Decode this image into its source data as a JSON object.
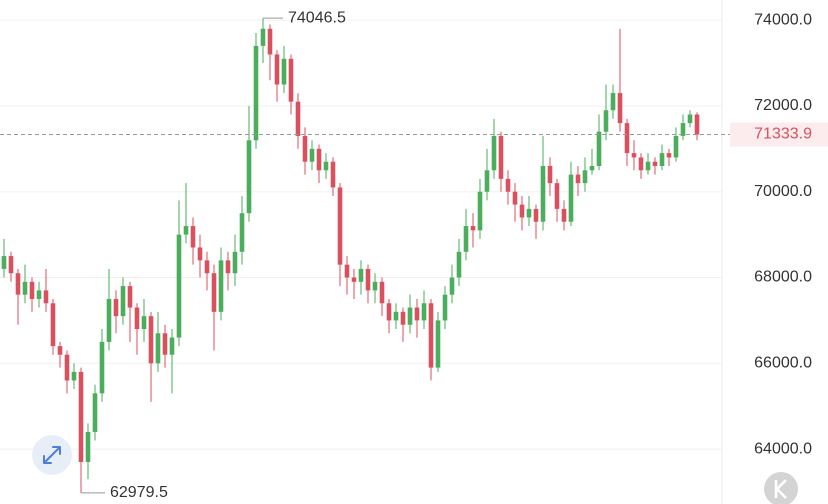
{
  "chart_data": {
    "type": "candlestick",
    "open": [
      68200,
      68500,
      68100,
      67600,
      67900,
      67500,
      67700,
      67400,
      66400,
      66200,
      65600,
      65800,
      63700,
      64400,
      65300,
      66500,
      67500,
      67100,
      67800,
      67300,
      66800,
      67100,
      66000,
      66700,
      66200,
      66600,
      69000,
      69200,
      68700,
      68400,
      68100,
      67200,
      68400,
      68100,
      68600,
      69500,
      71200,
      73400,
      73800,
      73200,
      72500,
      73100,
      72100,
      71300,
      70700,
      71000,
      70500,
      70700,
      70100,
      68300,
      68000,
      67900,
      68200,
      67700,
      67900,
      67400,
      67000,
      67200,
      66900,
      67300,
      67000,
      67400,
      65900,
      67000,
      67600,
      68000,
      68600,
      69200,
      69100,
      70000,
      70500,
      71300,
      70300,
      70000,
      69700,
      69400,
      69600,
      69300,
      70600,
      70200,
      69600,
      69300,
      70400,
      70200,
      70500,
      70600,
      71400,
      71900,
      72300,
      71600,
      70900,
      70800,
      70500,
      70700,
      70600,
      70900,
      70800,
      71300,
      71600,
      71800
    ],
    "high": [
      68900,
      68600,
      68200,
      68300,
      68000,
      67900,
      68200,
      67500,
      66500,
      66300,
      66000,
      65900,
      64600,
      65500,
      66800,
      68200,
      67700,
      68000,
      67900,
      67400,
      67500,
      67200,
      67200,
      66900,
      66800,
      69800,
      70200,
      69400,
      69000,
      68600,
      68300,
      68700,
      68600,
      69000,
      69900,
      72000,
      73700,
      74046.5,
      73900,
      73300,
      73400,
      73200,
      72300,
      71500,
      71200,
      71100,
      70900,
      70800,
      70200,
      68500,
      68200,
      68400,
      68300,
      68100,
      68000,
      67500,
      67400,
      67300,
      67600,
      67500,
      67700,
      67500,
      67200,
      67800,
      68300,
      68900,
      69600,
      69500,
      70300,
      71000,
      71700,
      71400,
      70500,
      70200,
      69900,
      69900,
      69700,
      71300,
      70800,
      70300,
      69800,
      70700,
      70600,
      70800,
      71000,
      71800,
      72500,
      72500,
      73800,
      71700,
      71200,
      70900,
      70900,
      70800,
      71100,
      71000,
      71500,
      71800,
      71900,
      71850
    ],
    "low": [
      68000,
      67900,
      66900,
      67400,
      67200,
      67300,
      67200,
      66200,
      65900,
      65300,
      65400,
      62979.5,
      63300,
      64200,
      65100,
      66300,
      66700,
      66900,
      66500,
      66200,
      66500,
      65100,
      65800,
      65900,
      65300,
      66400,
      68800,
      68300,
      68000,
      67700,
      66300,
      67000,
      67700,
      67800,
      68300,
      69300,
      71000,
      73000,
      72600,
      72100,
      72300,
      71800,
      71000,
      70400,
      70500,
      70200,
      70300,
      69900,
      67800,
      67600,
      67500,
      67600,
      67400,
      67400,
      67100,
      66700,
      66800,
      66500,
      66700,
      66600,
      66800,
      65600,
      65800,
      66800,
      67400,
      67800,
      68400,
      68700,
      68900,
      69800,
      70300,
      70000,
      69700,
      69300,
      69100,
      69200,
      68900,
      69100,
      69900,
      69300,
      69100,
      69200,
      69900,
      70000,
      70400,
      70500,
      71200,
      71700,
      71400,
      70600,
      70500,
      70300,
      70400,
      70400,
      70500,
      70600,
      70700,
      71200,
      71500,
      71200
    ],
    "close": [
      68500,
      68100,
      67600,
      67900,
      67500,
      67700,
      67400,
      66400,
      66200,
      65600,
      65800,
      63700,
      64400,
      65300,
      66500,
      67500,
      67100,
      67800,
      67300,
      66800,
      67100,
      66000,
      66700,
      66200,
      66600,
      69000,
      69200,
      68700,
      68400,
      68100,
      67200,
      68400,
      68100,
      68600,
      69500,
      71200,
      73400,
      73800,
      73200,
      72500,
      73100,
      72100,
      71300,
      70700,
      71000,
      70500,
      70700,
      70100,
      68300,
      68000,
      67900,
      68200,
      67700,
      67900,
      67400,
      67000,
      67200,
      66900,
      67300,
      67000,
      67400,
      65900,
      67000,
      67600,
      68000,
      68600,
      69200,
      69100,
      70000,
      70500,
      71300,
      70300,
      70000,
      69700,
      69400,
      69600,
      69300,
      70600,
      70200,
      69600,
      69300,
      70400,
      70200,
      70500,
      70600,
      71400,
      71900,
      72300,
      71600,
      70900,
      70800,
      70500,
      70700,
      70600,
      70900,
      70800,
      71300,
      71600,
      71800,
      71333.9
    ],
    "up_color": "#4aae5c",
    "down_color": "#d9505e",
    "ylim": [
      62720,
      74470
    ],
    "yticks": [
      {
        "value": 64000,
        "label": "64000.0"
      },
      {
        "value": 66000,
        "label": "66000.0"
      },
      {
        "value": 68000,
        "label": "68000.0"
      },
      {
        "value": 70000,
        "label": "70000.0"
      },
      {
        "value": 72000,
        "label": "72000.0"
      },
      {
        "value": 74000,
        "label": "74000.0"
      }
    ],
    "grid": true
  }
}
